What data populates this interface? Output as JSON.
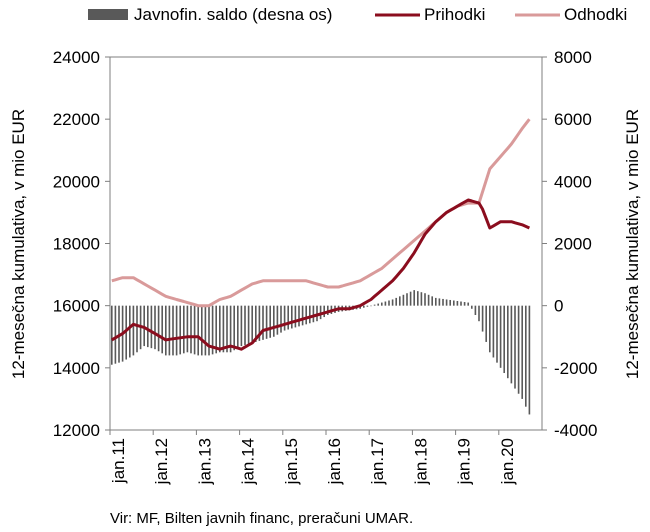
{
  "chart_data": {
    "type": "bar+line",
    "legend": {
      "position": "top",
      "items": [
        {
          "label": "Javnofin. saldo (desna os)",
          "color": "#595959",
          "kind": "bar"
        },
        {
          "label": "Prihodki",
          "color": "#8b0d1e",
          "kind": "line"
        },
        {
          "label": "Odhodki",
          "color": "#d99a9a",
          "kind": "line"
        }
      ]
    },
    "y_left": {
      "label": "12-mesečna kumulativa, v mio EUR",
      "min": 12000,
      "max": 24000,
      "ticks": [
        "12000",
        "14000",
        "16000",
        "18000",
        "20000",
        "22000",
        "24000"
      ]
    },
    "y_right": {
      "label": "12-mesečna kumulativa, v mio EUR",
      "min": -4000,
      "max": 8000,
      "ticks": [
        "-4000",
        "-2000",
        "0",
        "2000",
        "4000",
        "6000",
        "8000"
      ]
    },
    "x_ticks": [
      "jan.11",
      "jan.12",
      "jan.13",
      "jan.14",
      "jan.15",
      "jan.16",
      "jan.17",
      "jan.18",
      "jan.19",
      "jan.20"
    ],
    "x_start_year": 2011,
    "months": 120,
    "series": [
      {
        "name": "Prihodki",
        "axis": "left",
        "points": [
          [
            0,
            14900
          ],
          [
            3,
            15100
          ],
          [
            6,
            15400
          ],
          [
            9,
            15300
          ],
          [
            12,
            15100
          ],
          [
            15,
            14900
          ],
          [
            18,
            14950
          ],
          [
            21,
            15000
          ],
          [
            24,
            15000
          ],
          [
            27,
            14700
          ],
          [
            30,
            14600
          ],
          [
            33,
            14700
          ],
          [
            36,
            14600
          ],
          [
            39,
            14800
          ],
          [
            42,
            15200
          ],
          [
            45,
            15300
          ],
          [
            48,
            15400
          ],
          [
            51,
            15500
          ],
          [
            54,
            15600
          ],
          [
            57,
            15700
          ],
          [
            60,
            15800
          ],
          [
            63,
            15900
          ],
          [
            66,
            15900
          ],
          [
            69,
            16000
          ],
          [
            72,
            16200
          ],
          [
            75,
            16500
          ],
          [
            78,
            16800
          ],
          [
            81,
            17200
          ],
          [
            84,
            17700
          ],
          [
            87,
            18300
          ],
          [
            90,
            18700
          ],
          [
            93,
            19000
          ],
          [
            96,
            19200
          ],
          [
            99,
            19400
          ],
          [
            102,
            19300
          ],
          [
            103,
            19100
          ],
          [
            105,
            18500
          ],
          [
            108,
            18700
          ],
          [
            111,
            18700
          ],
          [
            114,
            18600
          ],
          [
            116,
            18500
          ]
        ]
      },
      {
        "name": "Odhodki",
        "axis": "left",
        "points": [
          [
            0,
            16800
          ],
          [
            3,
            16900
          ],
          [
            6,
            16900
          ],
          [
            9,
            16700
          ],
          [
            12,
            16500
          ],
          [
            15,
            16300
          ],
          [
            18,
            16200
          ],
          [
            21,
            16100
          ],
          [
            24,
            16000
          ],
          [
            27,
            16000
          ],
          [
            30,
            16200
          ],
          [
            33,
            16300
          ],
          [
            36,
            16500
          ],
          [
            39,
            16700
          ],
          [
            42,
            16800
          ],
          [
            45,
            16800
          ],
          [
            48,
            16800
          ],
          [
            51,
            16800
          ],
          [
            54,
            16800
          ],
          [
            57,
            16700
          ],
          [
            60,
            16600
          ],
          [
            63,
            16600
          ],
          [
            66,
            16700
          ],
          [
            69,
            16800
          ],
          [
            72,
            17000
          ],
          [
            75,
            17200
          ],
          [
            78,
            17500
          ],
          [
            81,
            17800
          ],
          [
            84,
            18100
          ],
          [
            87,
            18400
          ],
          [
            90,
            18700
          ],
          [
            93,
            19000
          ],
          [
            96,
            19200
          ],
          [
            99,
            19300
          ],
          [
            102,
            19300
          ],
          [
            105,
            20400
          ],
          [
            108,
            20800
          ],
          [
            111,
            21200
          ],
          [
            114,
            21700
          ],
          [
            116,
            22000
          ]
        ]
      },
      {
        "name": "Javnofin. saldo (desna os)",
        "axis": "right",
        "points": [
          [
            0,
            -1900
          ],
          [
            3,
            -1800
          ],
          [
            6,
            -1600
          ],
          [
            9,
            -1300
          ],
          [
            12,
            -1400
          ],
          [
            15,
            -1600
          ],
          [
            18,
            -1600
          ],
          [
            21,
            -1500
          ],
          [
            24,
            -1600
          ],
          [
            27,
            -1600
          ],
          [
            30,
            -1500
          ],
          [
            33,
            -1500
          ],
          [
            36,
            -1300
          ],
          [
            39,
            -1200
          ],
          [
            42,
            -1100
          ],
          [
            45,
            -1000
          ],
          [
            48,
            -800
          ],
          [
            51,
            -700
          ],
          [
            54,
            -600
          ],
          [
            57,
            -500
          ],
          [
            60,
            -300
          ],
          [
            63,
            -200
          ],
          [
            66,
            -150
          ],
          [
            69,
            -100
          ],
          [
            72,
            0
          ],
          [
            75,
            100
          ],
          [
            78,
            200
          ],
          [
            81,
            350
          ],
          [
            84,
            500
          ],
          [
            87,
            400
          ],
          [
            90,
            250
          ],
          [
            93,
            200
          ],
          [
            96,
            150
          ],
          [
            99,
            100
          ],
          [
            102,
            -500
          ],
          [
            105,
            -1500
          ],
          [
            108,
            -2000
          ],
          [
            111,
            -2500
          ],
          [
            114,
            -3000
          ],
          [
            116,
            -3500
          ]
        ]
      }
    ]
  },
  "source_note": "Vir: MF, Bilten javnih financ, preračuni UMAR."
}
